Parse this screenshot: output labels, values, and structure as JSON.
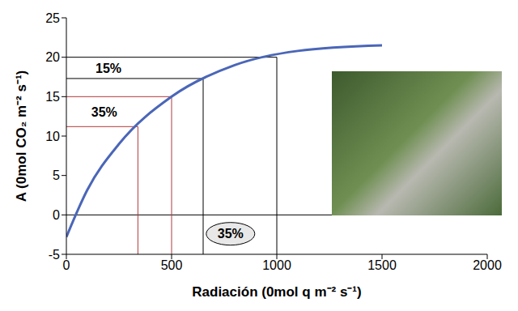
{
  "chart_data": {
    "type": "line",
    "x_label": "Radiación (0mol q m⁻² s⁻¹)",
    "y_label": "A (0mol CO₂ m⁻² s⁻¹)",
    "x": [
      0,
      100,
      250,
      500,
      800,
      1100,
      1500
    ],
    "values": [
      -2.8,
      3.2,
      9,
      15,
      19,
      20.8,
      21.5
    ],
    "color": "#4a66b8",
    "xlim": [
      0,
      2000
    ],
    "xticks": [
      0,
      500,
      1000,
      1500,
      2000
    ],
    "ylim": [
      -5,
      25
    ],
    "yticks": [
      -5,
      0,
      5,
      10,
      15,
      20,
      25
    ],
    "grid": false,
    "guides": [
      {
        "x": 340,
        "y": 11.2,
        "color": "#b03a3a"
      },
      {
        "x": 500,
        "y": 15,
        "color": "#b03a3a"
      },
      {
        "x": 650,
        "y": 17.3,
        "color": "#000000"
      },
      {
        "x": 1000,
        "y": 20,
        "color": "#000000"
      }
    ],
    "annotations": [
      {
        "text": "15%",
        "x": 200,
        "y": 18.6
      },
      {
        "text": "35%",
        "x": 180,
        "y": 13
      },
      {
        "text": "35%",
        "x": 780,
        "y": -2.4,
        "marker": "ellipse"
      }
    ]
  }
}
